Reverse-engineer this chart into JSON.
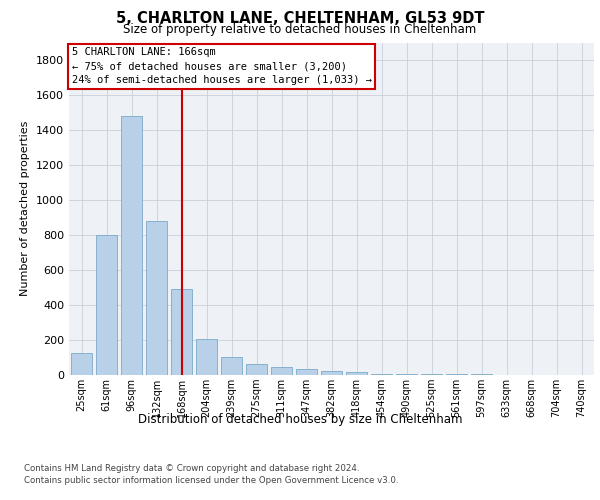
{
  "title1": "5, CHARLTON LANE, CHELTENHAM, GL53 9DT",
  "title2": "Size of property relative to detached houses in Cheltenham",
  "xlabel": "Distribution of detached houses by size in Cheltenham",
  "ylabel": "Number of detached properties",
  "categories": [
    "25sqm",
    "61sqm",
    "96sqm",
    "132sqm",
    "168sqm",
    "204sqm",
    "239sqm",
    "275sqm",
    "311sqm",
    "347sqm",
    "382sqm",
    "418sqm",
    "454sqm",
    "490sqm",
    "525sqm",
    "561sqm",
    "597sqm",
    "633sqm",
    "668sqm",
    "704sqm",
    "740sqm"
  ],
  "values": [
    125,
    800,
    1480,
    880,
    490,
    205,
    105,
    65,
    45,
    35,
    25,
    15,
    5,
    3,
    3,
    3,
    3,
    0,
    0,
    0,
    0
  ],
  "bar_color": "#b8d0e8",
  "bar_edgecolor": "#7aaac8",
  "redline_index": 4,
  "property_size": 166,
  "annotation_title": "5 CHARLTON LANE: 166sqm",
  "annotation_line1": "← 75% of detached houses are smaller (3,200)",
  "annotation_line2": "24% of semi-detached houses are larger (1,033) →",
  "annotation_box_color": "#cc0000",
  "ylim": [
    0,
    1900
  ],
  "yticks": [
    0,
    200,
    400,
    600,
    800,
    1000,
    1200,
    1400,
    1600,
    1800
  ],
  "footer_line1": "Contains HM Land Registry data © Crown copyright and database right 2024.",
  "footer_line2": "Contains public sector information licensed under the Open Government Licence v3.0.",
  "background_color": "#eef2f6",
  "grid_color": "#c8d0d8"
}
